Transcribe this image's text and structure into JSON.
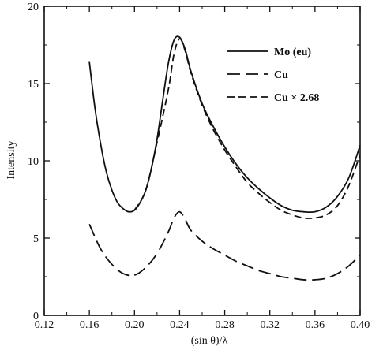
{
  "chart_data": {
    "type": "line",
    "title": "",
    "xlabel": "(sin θ)/λ",
    "ylabel": "Intensity",
    "xlim": [
      0.12,
      0.4
    ],
    "ylim": [
      0,
      20
    ],
    "xticks": [
      "0.12",
      "0.16",
      "0.20",
      "0.24",
      "0.28",
      "0.32",
      "0.36",
      "0.40"
    ],
    "yticks": [
      "0",
      "5",
      "10",
      "15",
      "20"
    ],
    "grid": false,
    "legend_position": "top-right",
    "series": [
      {
        "name": "Mo (eu)",
        "style": "solid",
        "color": "#111111",
        "x": [
          0.16,
          0.165,
          0.17,
          0.175,
          0.18,
          0.185,
          0.19,
          0.195,
          0.2,
          0.205,
          0.21,
          0.215,
          0.22,
          0.225,
          0.23,
          0.235,
          0.24,
          0.245,
          0.25,
          0.26,
          0.27,
          0.28,
          0.29,
          0.3,
          0.31,
          0.32,
          0.33,
          0.34,
          0.35,
          0.36,
          0.37,
          0.38,
          0.39,
          0.4
        ],
        "y": [
          16.4,
          13.4,
          11.1,
          9.3,
          8.1,
          7.3,
          6.9,
          6.7,
          6.8,
          7.3,
          8.1,
          9.5,
          11.4,
          13.9,
          16.3,
          17.8,
          18.0,
          17.2,
          15.8,
          13.7,
          12.2,
          10.9,
          9.8,
          8.9,
          8.2,
          7.6,
          7.1,
          6.8,
          6.7,
          6.7,
          7.0,
          7.7,
          8.9,
          11.0
        ]
      },
      {
        "name": "Cu",
        "style": "long-dash",
        "color": "#111111",
        "x": [
          0.16,
          0.17,
          0.18,
          0.19,
          0.2,
          0.21,
          0.22,
          0.23,
          0.235,
          0.24,
          0.245,
          0.25,
          0.26,
          0.27,
          0.28,
          0.29,
          0.3,
          0.31,
          0.32,
          0.33,
          0.34,
          0.35,
          0.36,
          0.37,
          0.38,
          0.39,
          0.4
        ],
        "y": [
          5.9,
          4.3,
          3.3,
          2.7,
          2.6,
          3.1,
          4.0,
          5.4,
          6.3,
          6.7,
          6.2,
          5.5,
          4.8,
          4.3,
          3.9,
          3.5,
          3.2,
          2.9,
          2.7,
          2.5,
          2.4,
          2.3,
          2.3,
          2.4,
          2.7,
          3.2,
          3.9
        ]
      },
      {
        "name": "Cu × 2.68",
        "style": "dash",
        "color": "#111111",
        "x": [
          0.2,
          0.21,
          0.22,
          0.23,
          0.235,
          0.24,
          0.245,
          0.25,
          0.26,
          0.27,
          0.28,
          0.29,
          0.3,
          0.31,
          0.32,
          0.33,
          0.34,
          0.35,
          0.36,
          0.37,
          0.38,
          0.39,
          0.4
        ],
        "y": [
          6.8,
          8.1,
          11.2,
          14.6,
          16.9,
          17.9,
          17.1,
          15.7,
          13.6,
          12.0,
          10.7,
          9.6,
          8.6,
          7.9,
          7.3,
          6.8,
          6.5,
          6.3,
          6.3,
          6.5,
          7.1,
          8.4,
          10.4
        ]
      }
    ]
  }
}
